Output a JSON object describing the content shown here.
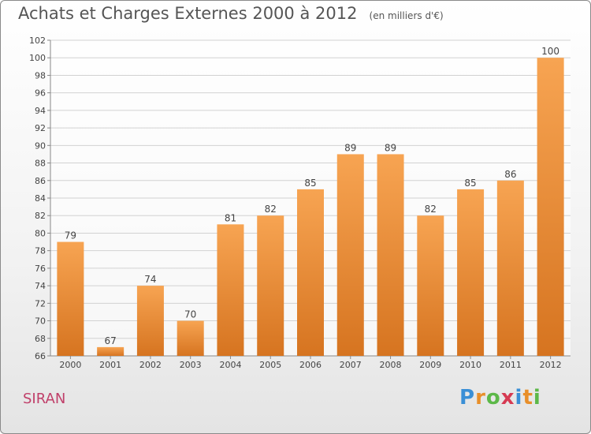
{
  "chart_data": {
    "type": "bar",
    "title": "Achats et Charges Externes 2000 à 2012",
    "subtitle": "(en milliers d'€)",
    "categories": [
      "2000",
      "2001",
      "2002",
      "2003",
      "2004",
      "2005",
      "2006",
      "2007",
      "2008",
      "2009",
      "2010",
      "2011",
      "2012"
    ],
    "values": [
      79,
      67,
      74,
      70,
      81,
      82,
      85,
      89,
      89,
      82,
      85,
      86,
      100
    ],
    "ylim": [
      66,
      102
    ],
    "yticks": [
      66,
      68,
      70,
      72,
      74,
      76,
      78,
      80,
      82,
      84,
      86,
      88,
      90,
      92,
      94,
      96,
      98,
      100,
      102
    ],
    "grid": true,
    "bar_color_top": "#f7a452",
    "bar_color_bottom": "#d67420"
  },
  "commune": "SIRAN",
  "logo": "Proxiti",
  "colors": {
    "commune": "#c0406a",
    "logo_letters": [
      "#3a8fd6",
      "#e88f2a",
      "#5cb848",
      "#d63a52"
    ]
  }
}
